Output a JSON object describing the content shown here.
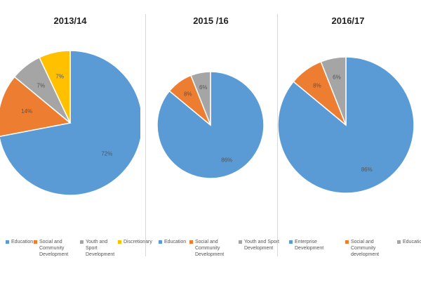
{
  "colors": {
    "blue": "#5b9bd5",
    "orange": "#ed7d31",
    "gray": "#a5a5a5",
    "yellow": "#ffc000"
  },
  "chart_data": [
    {
      "type": "pie",
      "title": "2013/14",
      "slices": [
        {
          "label": "Education",
          "value": 72,
          "display": "72%",
          "color": "#5b9bd5"
        },
        {
          "label": "Social and Community Development",
          "value": 14,
          "display": "14%",
          "color": "#ed7d31"
        },
        {
          "label": "Youth and Sport Development",
          "value": 7,
          "display": "7%",
          "color": "#a5a5a5"
        },
        {
          "label": "Discretionary",
          "value": 7,
          "display": "7%",
          "color": "#ffc000"
        }
      ],
      "legend_position": "bottom"
    },
    {
      "type": "pie",
      "title": "2015 /16",
      "slices": [
        {
          "label": "Education",
          "value": 86,
          "display": "86%",
          "color": "#5b9bd5"
        },
        {
          "label": "Social and Community Development",
          "value": 8,
          "display": "8%",
          "color": "#ed7d31"
        },
        {
          "label": "Youth and Sport Development",
          "value": 6,
          "display": "6%",
          "color": "#a5a5a5"
        }
      ],
      "legend_position": "bottom"
    },
    {
      "type": "pie",
      "title": "2016/17",
      "slices": [
        {
          "label": "Enterprise Development",
          "value": 86,
          "display": "86%",
          "color": "#5b9bd5"
        },
        {
          "label": "Social and Community development",
          "value": 8,
          "display": "8%",
          "color": "#ed7d31"
        },
        {
          "label": "Education",
          "value": 6,
          "display": "6%",
          "color": "#a5a5a5"
        }
      ],
      "legend_position": "bottom"
    }
  ]
}
